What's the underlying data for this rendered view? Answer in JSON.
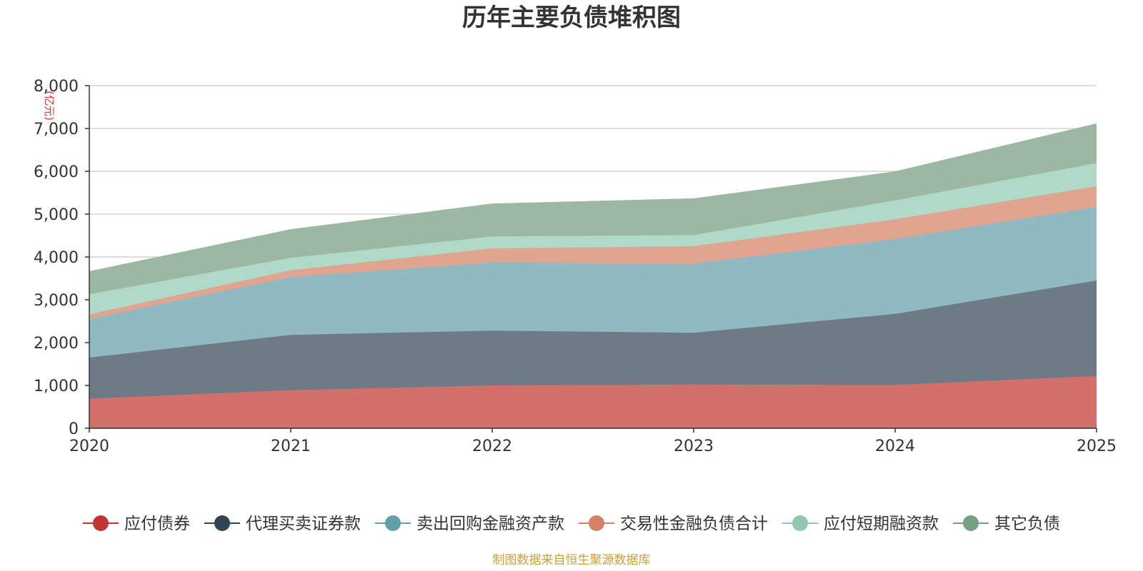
{
  "chart_data": {
    "type": "area",
    "stacked": true,
    "title": "历年主要负债堆积图",
    "ylabel": "(亿元)",
    "xlabel": "",
    "x": [
      "2020",
      "2021",
      "2022",
      "2023",
      "2024",
      "2025"
    ],
    "ylim": [
      0,
      8000
    ],
    "yticks": [
      "0",
      "1,000",
      "2,000",
      "3,000",
      "4,000",
      "5,000",
      "6,000",
      "7,000",
      "8,000"
    ],
    "ytick_values": [
      0,
      1000,
      2000,
      3000,
      4000,
      5000,
      6000,
      7000,
      8000
    ],
    "grid": true,
    "legend_position": "bottom",
    "series": [
      {
        "name": "应付债券",
        "color": "#c23531",
        "fill": "#d4706c",
        "values": [
          690,
          890,
          1000,
          1020,
          1010,
          1220
        ]
      },
      {
        "name": "代理买卖证券款",
        "color": "#2f4554",
        "fill": "#6e7b86",
        "values": [
          960,
          1290,
          1280,
          1210,
          1660,
          2230
        ]
      },
      {
        "name": "卖出回购金融资产款",
        "color": "#61a0a8",
        "fill": "#90b9c1",
        "values": [
          900,
          1350,
          1590,
          1610,
          1750,
          1720
        ]
      },
      {
        "name": "交易性金融负债合计",
        "color": "#d48265",
        "fill": "#e0a591",
        "values": [
          110,
          160,
          330,
          410,
          460,
          480
        ]
      },
      {
        "name": "应付短期融资款",
        "color": "#91c7ae",
        "fill": "#b0d9c7",
        "values": [
          470,
          290,
          280,
          260,
          440,
          540
        ]
      },
      {
        "name": "其它负债",
        "color": "#749f83",
        "fill": "#9db8a2",
        "values": [
          530,
          660,
          760,
          850,
          670,
          920
        ]
      }
    ]
  },
  "source_text": "制图数据来自恒生聚源数据库"
}
